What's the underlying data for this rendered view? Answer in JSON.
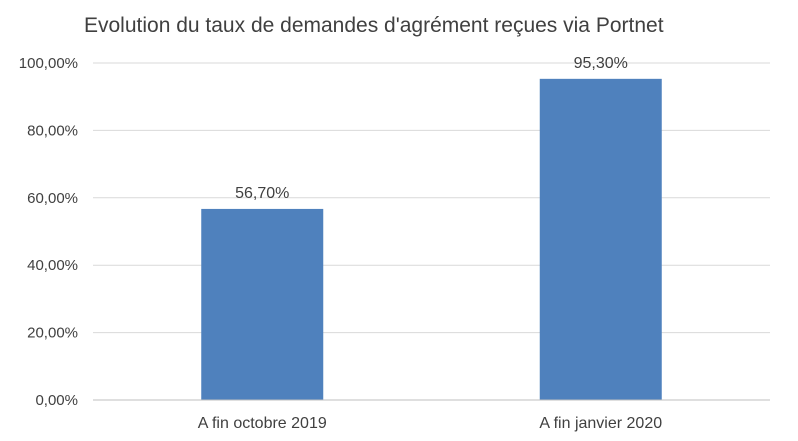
{
  "chart_data": {
    "type": "bar",
    "title": "Evolution du taux de demandes d'agrément reçues via Portnet",
    "categories": [
      "A fin octobre 2019",
      "A fin janvier 2020"
    ],
    "values": [
      56.7,
      95.3
    ],
    "value_labels": [
      "56,70%",
      "95,30%"
    ],
    "ylim": [
      0,
      100
    ],
    "yticks": [
      0,
      20,
      40,
      60,
      80,
      100
    ],
    "ytick_labels": [
      "0,00%",
      "20,00%",
      "40,00%",
      "60,00%",
      "80,00%",
      "100,00%"
    ],
    "xlabel": "",
    "ylabel": "",
    "grid": true,
    "legend": "none",
    "bar_color": "#4F81BD",
    "grid_color": "#D9D9D9"
  }
}
